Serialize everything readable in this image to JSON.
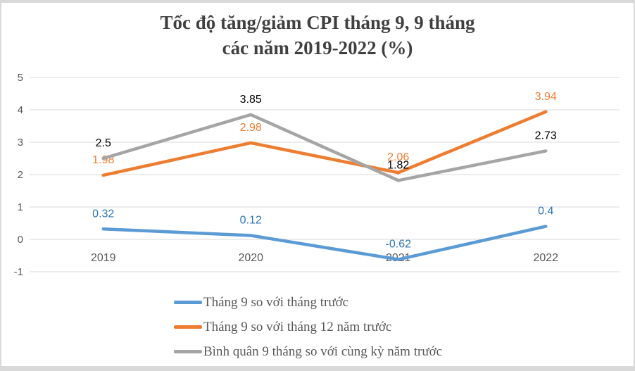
{
  "title": {
    "line1": "Tốc độ tăng/giảm CPI tháng 9, 9 tháng",
    "line2": "các năm 2019-2022 (%)"
  },
  "theme": {
    "grid": "#D9D9D9",
    "axis_text": "#595959",
    "title_text": "#404040",
    "legend_text": "#595959",
    "frame": "#D9D9D9",
    "background": "#FFFFFF"
  },
  "chart_data": {
    "type": "line",
    "title": "Tốc độ tăng/giảm CPI tháng 9, 9 tháng các năm 2019-2022 (%)",
    "categories": [
      "2019",
      "2020",
      "2021",
      "2022"
    ],
    "series": [
      {
        "name": "Tháng 9 so với tháng trước",
        "values": [
          0.32,
          0.12,
          -0.62,
          0.4
        ],
        "labels": [
          "0.32",
          "0.12",
          "-0.62",
          "0.4"
        ],
        "color": "#5B9BD5",
        "label_color": "#2E75B6"
      },
      {
        "name": "Tháng 9 so với tháng 12 năm trước",
        "values": [
          1.98,
          2.98,
          2.06,
          3.94
        ],
        "labels": [
          "1.98",
          "2.98",
          "2.06",
          "3.94"
        ],
        "color": "#ED7D31",
        "label_color": "#ED7D31"
      },
      {
        "name": "Bình quân 9 tháng so với cùng kỳ năm trước",
        "values": [
          2.5,
          3.85,
          1.82,
          2.73
        ],
        "labels": [
          "2.5",
          "3.85",
          "1.82",
          "2.73"
        ],
        "color": "#A5A5A5",
        "label_color": "#000000"
      }
    ],
    "xlabel": "",
    "ylabel": "",
    "ylim": [
      -1,
      5
    ],
    "y_ticks": [
      5,
      4,
      3,
      2,
      1,
      0,
      -1
    ],
    "grid": true,
    "data_labels": true,
    "legend_position": "bottom-left"
  }
}
